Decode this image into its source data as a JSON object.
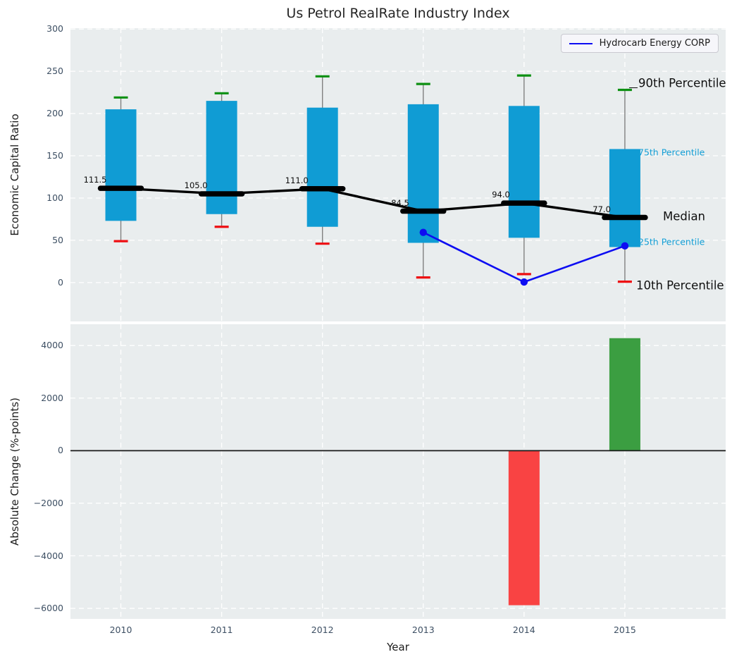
{
  "figure": {
    "title": "Us Petrol RealRate Industry Index"
  },
  "legend": {
    "label": "Hydrocarb Energy CORP"
  },
  "annotations": {
    "p90": "90th Percentile",
    "p75": "75th Percentile",
    "median": "Median",
    "p25": "25th Percentile",
    "p10": "10th Percentile"
  },
  "axes": {
    "top": {
      "ylabel": "Economic Capital Ratio"
    },
    "bottom": {
      "ylabel": "Absolute Change (%-points)",
      "xlabel": "Year"
    }
  },
  "colors": {
    "axes_bg": "#e9edee",
    "grid": "#ffffff",
    "box": "#109cd4",
    "whisker": "#808080",
    "cap_high": "#0d9012",
    "cap_low": "#ee0e12",
    "median": "#000000",
    "company_line": "#0d0df2",
    "bar_negative": "#f94343",
    "bar_positive": "#3b9e41",
    "tick_label": "#3d4f63",
    "annotation_small": "#149fd6",
    "zero_line": "#1a1a1a"
  },
  "chart_data": [
    {
      "type": "box",
      "title": "Us Petrol RealRate Industry Index",
      "ylabel": "Economic Capital Ratio",
      "categories": [
        2010,
        2011,
        2012,
        2013,
        2014,
        2015
      ],
      "series": [
        {
          "name": "90th Percentile",
          "values": [
            219,
            224,
            244,
            235,
            245,
            228
          ]
        },
        {
          "name": "75th Percentile",
          "values": [
            205,
            215,
            207,
            211,
            209,
            158
          ]
        },
        {
          "name": "Median",
          "values": [
            111.5,
            105.0,
            111.0,
            84.5,
            94.0,
            77.0
          ]
        },
        {
          "name": "25th Percentile",
          "values": [
            73,
            81,
            66,
            47,
            53,
            42
          ]
        },
        {
          "name": "10th Percentile",
          "values": [
            49,
            66,
            46,
            6,
            10,
            1
          ]
        },
        {
          "name": "Hydrocarb Energy CORP",
          "x": [
            2013,
            2014,
            2015
          ],
          "values": [
            59.4,
            0.6,
            43.4
          ]
        }
      ],
      "median_labels": [
        "111.5",
        "105.0",
        "111.0",
        "84.5",
        "94.0",
        "77.0"
      ],
      "yticks": [
        0,
        50,
        100,
        150,
        200,
        250,
        300
      ],
      "ylim": [
        -46,
        301
      ],
      "grid": true,
      "legend_position": "upper right"
    },
    {
      "type": "bar",
      "ylabel": "Absolute Change (%-points)",
      "xlabel": "Year",
      "categories": [
        2010,
        2011,
        2012,
        2013,
        2014,
        2015
      ],
      "values": [
        null,
        null,
        null,
        null,
        -5880,
        4280
      ],
      "yticks": [
        -6000,
        -4000,
        -2000,
        0,
        2000,
        4000
      ],
      "ylim": [
        -6400,
        4810
      ],
      "grid": true
    }
  ]
}
